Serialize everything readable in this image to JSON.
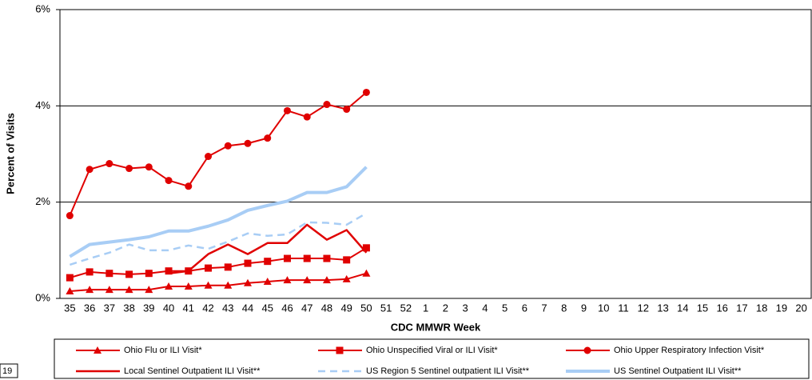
{
  "chart_data": {
    "type": "line",
    "y_label": "Percent of Visits",
    "x_label": "CDC MMWR Week",
    "corner_label": "19",
    "categories": [
      "35",
      "36",
      "37",
      "38",
      "39",
      "40",
      "41",
      "42",
      "43",
      "44",
      "45",
      "46",
      "47",
      "48",
      "49",
      "50",
      "51",
      "52",
      "1",
      "2",
      "3",
      "4",
      "5",
      "6",
      "7",
      "8",
      "9",
      "10",
      "11",
      "12",
      "13",
      "14",
      "15",
      "16",
      "17",
      "18",
      "19",
      "20"
    ],
    "ylim": [
      0,
      6
    ],
    "yticks": [
      {
        "value": 0,
        "label": "0%"
      },
      {
        "value": 2,
        "label": "2%"
      },
      {
        "value": 4,
        "label": "4%"
      },
      {
        "value": 6,
        "label": "6%"
      }
    ],
    "grid": true,
    "series": [
      {
        "name": "Ohio Flu or ILI Visit*",
        "color": "#e00000",
        "marker": "triangle",
        "width": 2,
        "values": [
          0.15,
          0.18,
          0.18,
          0.18,
          0.18,
          0.25,
          0.25,
          0.27,
          0.27,
          0.32,
          0.35,
          0.38,
          0.38,
          0.38,
          0.4,
          0.52,
          null,
          null,
          null,
          null,
          null,
          null,
          null,
          null,
          null,
          null,
          null,
          null,
          null,
          null,
          null,
          null,
          null,
          null,
          null,
          null,
          null,
          null
        ]
      },
      {
        "name": "Ohio Unspecified Viral or ILI Visit*",
        "color": "#e00000",
        "marker": "square",
        "width": 2,
        "values": [
          0.43,
          0.55,
          0.52,
          0.5,
          0.52,
          0.57,
          0.57,
          0.63,
          0.65,
          0.73,
          0.77,
          0.83,
          0.83,
          0.83,
          0.8,
          1.05,
          null,
          null,
          null,
          null,
          null,
          null,
          null,
          null,
          null,
          null,
          null,
          null,
          null,
          null,
          null,
          null,
          null,
          null,
          null,
          null,
          null,
          null
        ]
      },
      {
        "name": "Ohio Upper Respiratory Infection Visit*",
        "color": "#e00000",
        "marker": "circle",
        "width": 2,
        "values": [
          1.72,
          2.68,
          2.8,
          2.7,
          2.73,
          2.45,
          2.33,
          2.95,
          3.17,
          3.22,
          3.33,
          3.9,
          3.77,
          4.03,
          3.93,
          4.28,
          null,
          null,
          null,
          null,
          null,
          null,
          null,
          null,
          null,
          null,
          null,
          null,
          null,
          null,
          null,
          null,
          null,
          null,
          null,
          null,
          null,
          null
        ]
      },
      {
        "name": "Local Sentinel Outpatient ILI Visit**",
        "color": "#e00000",
        "marker": "none",
        "width": 2.5,
        "values": [
          null,
          null,
          null,
          null,
          null,
          0.52,
          0.57,
          0.92,
          1.12,
          0.92,
          1.15,
          1.15,
          1.53,
          1.22,
          1.42,
          0.95,
          null,
          null,
          null,
          null,
          null,
          null,
          null,
          null,
          null,
          null,
          null,
          null,
          null,
          null,
          null,
          null,
          null,
          null,
          null,
          null,
          null,
          null
        ]
      },
      {
        "name": "US Region 5 Sentinel outpatient ILI Visit**",
        "color": "#a8cdf5",
        "marker": "none",
        "dashed": true,
        "width": 2.5,
        "values": [
          0.7,
          0.83,
          0.95,
          1.12,
          1.0,
          1.0,
          1.1,
          1.03,
          1.18,
          1.35,
          1.3,
          1.33,
          1.58,
          1.57,
          1.53,
          1.77,
          null,
          null,
          null,
          null,
          null,
          null,
          null,
          null,
          null,
          null,
          null,
          null,
          null,
          null,
          null,
          null,
          null,
          null,
          null,
          null,
          null,
          null
        ]
      },
      {
        "name": "US Sentinel Outpatient ILI Visit**",
        "color": "#a8cdf5",
        "marker": "none",
        "width": 4,
        "values": [
          0.87,
          1.12,
          1.17,
          1.22,
          1.28,
          1.4,
          1.4,
          1.5,
          1.63,
          1.83,
          1.93,
          2.02,
          2.2,
          2.2,
          2.32,
          2.73,
          null,
          null,
          null,
          null,
          null,
          null,
          null,
          null,
          null,
          null,
          null,
          null,
          null,
          null,
          null,
          null,
          null,
          null,
          null,
          null,
          null,
          null
        ]
      }
    ]
  }
}
